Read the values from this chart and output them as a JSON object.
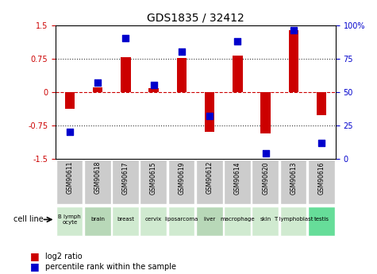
{
  "title": "GDS1835 / 32412",
  "samples": [
    "GSM90611",
    "GSM90618",
    "GSM90617",
    "GSM90615",
    "GSM90619",
    "GSM90612",
    "GSM90614",
    "GSM90620",
    "GSM90613",
    "GSM90616"
  ],
  "cell_lines": [
    "B lymph\nocyte",
    "brain",
    "breast",
    "cervix",
    "liposarcoma",
    "liver",
    "macrophage",
    "skin",
    "T lymphoblast",
    "testis"
  ],
  "cell_line_colors": [
    "#c8e6c9",
    "#a5d6a7",
    "#c8e6c9",
    "#c8e6c9",
    "#c8e6c9",
    "#a5d6a7",
    "#c8e6c9",
    "#c8e6c9",
    "#c8e6c9",
    "#69f0ae"
  ],
  "log2_ratio": [
    -0.38,
    0.1,
    0.78,
    0.08,
    0.76,
    -0.9,
    0.82,
    -0.92,
    1.38,
    -0.52
  ],
  "percentile_rank": [
    20,
    57,
    90,
    55,
    80,
    32,
    88,
    4,
    96,
    12
  ],
  "ylim_left": [
    -1.5,
    1.5
  ],
  "ylim_right": [
    0,
    100
  ],
  "yticks_left": [
    -1.5,
    -0.75,
    0,
    0.75,
    1.5
  ],
  "yticks_right": [
    0,
    25,
    50,
    75,
    100
  ],
  "ytick_labels_left": [
    "-1.5",
    "-0.75",
    "0",
    "0.75",
    "1.5"
  ],
  "ytick_labels_right": [
    "0",
    "25",
    "50",
    "75",
    "100%"
  ],
  "bar_color": "#cc0000",
  "dot_color": "#0000cc",
  "zero_line_color": "#cc0000",
  "dotted_line_color": "#333333",
  "bar_width": 0.35,
  "dot_size": 40,
  "bg_plot": "#ffffff",
  "bg_header": "#cccccc",
  "bg_footer_light": "#c8e6c9",
  "bg_footer_bright": "#00e676"
}
